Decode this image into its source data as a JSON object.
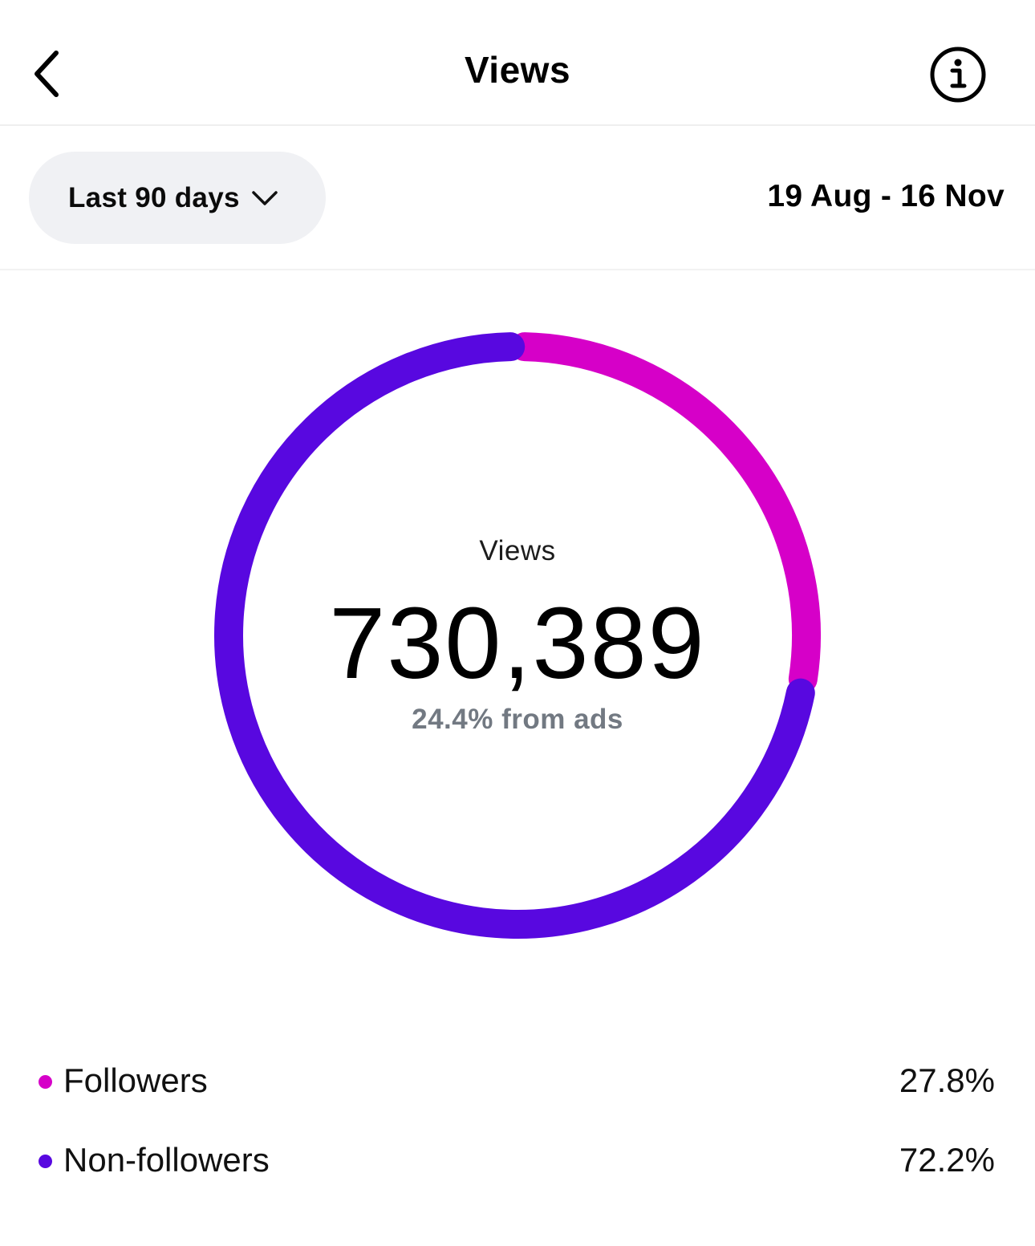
{
  "header": {
    "title": "Views",
    "back_icon": "chevron-left-icon",
    "info_icon": "info-icon"
  },
  "filter": {
    "range_label": "Last 90 days",
    "dropdown_icon": "chevron-down-icon",
    "date_range": "19 Aug - 16 Nov"
  },
  "summary": {
    "label": "Views",
    "total": "730,389",
    "ads_note": "24.4% from ads"
  },
  "chart_data": {
    "type": "pie",
    "categories": [
      "Followers",
      "Non-followers"
    ],
    "values": [
      27.8,
      72.2
    ],
    "colors": [
      "#d600c8",
      "#5808e0"
    ]
  },
  "legend": [
    {
      "label": "Followers",
      "value": "27.8%",
      "color": "#d600c8"
    },
    {
      "label": "Non-followers",
      "value": "72.2%",
      "color": "#5808e0"
    }
  ]
}
